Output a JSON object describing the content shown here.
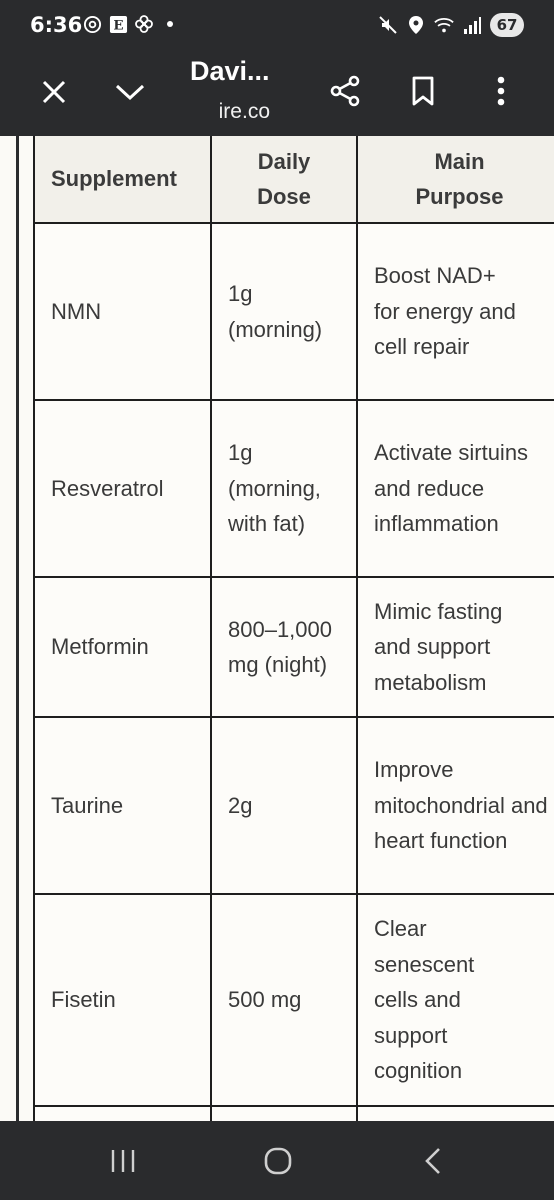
{
  "status": {
    "time": "6:36",
    "battery": "67",
    "left_icons": [
      "threads-icon",
      "e-app-icon",
      "fan-icon",
      "dot-icon"
    ],
    "right_icons": [
      "mute-icon",
      "location-icon",
      "wifi-icon",
      "signal-icon"
    ]
  },
  "toolbar": {
    "title": "Davi...",
    "url": "ire.co",
    "icons": [
      "close-icon",
      "chevron-down-icon",
      "share-icon",
      "bookmark-icon",
      "more-icon"
    ]
  },
  "table": {
    "headers": [
      "Supplement",
      "Daily Dose",
      "Main Purpose"
    ],
    "rows": [
      {
        "supplement": "NMN",
        "dose": "1g (morning)",
        "purpose": "Boost NAD+ for energy and cell repair"
      },
      {
        "supplement": "Resveratrol",
        "dose": "1g (morning, with fat)",
        "purpose": "Activate sirtuins and reduce inflammation"
      },
      {
        "supplement": "Metformin",
        "dose": "800–1,000 mg (night)",
        "purpose": "Mimic fasting and support metabolism"
      },
      {
        "supplement": "Taurine",
        "dose": "2g",
        "purpose": "Improve mitochondrial and heart function"
      },
      {
        "supplement": "Fisetin",
        "dose": "500 mg",
        "purpose": "Clear senescent cells and support cognition"
      }
    ]
  },
  "nav": {
    "icons": [
      "recents-icon",
      "home-icon",
      "back-icon"
    ]
  }
}
